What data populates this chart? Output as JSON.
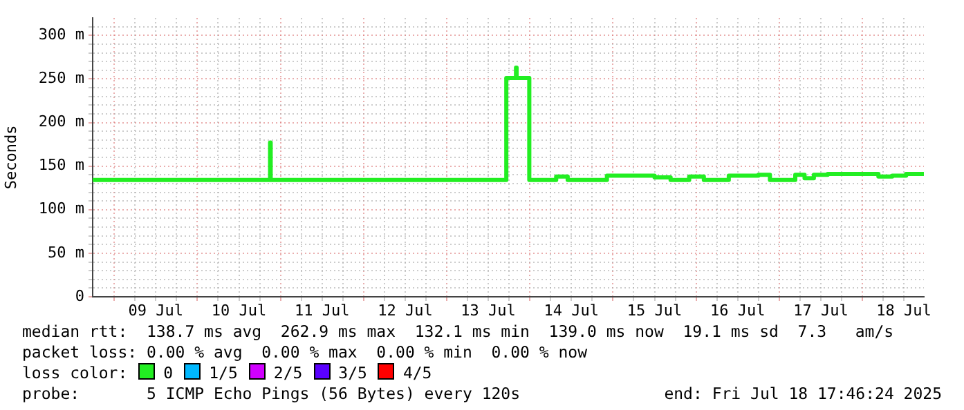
{
  "chart_data": {
    "type": "step",
    "ylabel": "Seconds",
    "x": [
      "2025-07-08T17:46",
      "2025-07-10T21:00",
      "2025-07-10T21:10",
      "2025-07-13T17:12",
      "2025-07-13T20:00",
      "2025-07-13T20:10",
      "2025-07-13T23:50",
      "2025-07-14T07:36",
      "2025-07-14T10:55",
      "2025-07-14T22:15",
      "2025-07-15T12:00",
      "2025-07-15T16:38",
      "2025-07-15T22:00",
      "2025-07-16T02:14",
      "2025-07-16T09:26",
      "2025-07-16T18:00",
      "2025-07-16T21:19",
      "2025-07-17T04:38",
      "2025-07-17T07:19",
      "2025-07-17T10:00",
      "2025-07-17T14:00",
      "2025-07-18T04:38",
      "2025-07-18T08:38",
      "2025-07-18T12:38",
      "2025-07-18T17:46"
    ],
    "series": [
      {
        "name": "0",
        "color": "#22ee22",
        "values": [
          134,
          177,
          134,
          251,
          263,
          251,
          134,
          138,
          134,
          139,
          137,
          134,
          138,
          134,
          139,
          140,
          134,
          140,
          136,
          140,
          141,
          138,
          139,
          141,
          140
        ]
      },
      {
        "name": "1/5",
        "color": "#00b8ff",
        "values": [
          null,
          null,
          null,
          null,
          null,
          null,
          null,
          null,
          null,
          null,
          null,
          null,
          null,
          null,
          null,
          null,
          null,
          null,
          null,
          null,
          null,
          null,
          null,
          null,
          null
        ]
      },
      {
        "name": "2/5",
        "color": "#d100ff",
        "values": [
          null,
          null,
          null,
          null,
          null,
          null,
          null,
          null,
          null,
          null,
          null,
          null,
          null,
          null,
          null,
          null,
          null,
          null,
          null,
          null,
          null,
          null,
          null,
          null,
          null
        ]
      },
      {
        "name": "3/5",
        "color": "#5a00ff",
        "values": [
          null,
          null,
          null,
          null,
          null,
          null,
          null,
          null,
          null,
          null,
          null,
          null,
          null,
          null,
          null,
          null,
          null,
          null,
          null,
          null,
          null,
          null,
          null,
          null,
          null
        ]
      },
      {
        "name": "4/5",
        "color": "#ff0000",
        "values": [
          null,
          null,
          null,
          null,
          null,
          null,
          null,
          null,
          null,
          null,
          null,
          null,
          null,
          null,
          null,
          null,
          null,
          null,
          null,
          null,
          null,
          null,
          null,
          null,
          null
        ]
      }
    ],
    "xlim": [
      "2025-07-08T17:46",
      "2025-07-18T17:46"
    ],
    "xticks": [
      {
        "value": "2025-07-09T00:00",
        "label": null
      },
      {
        "value": "2025-07-09T06:00",
        "label": null
      },
      {
        "value": "2025-07-09T12:00",
        "label": "09 Jul"
      },
      {
        "value": "2025-07-09T18:00",
        "label": null
      },
      {
        "value": "2025-07-10T00:00",
        "label": null
      },
      {
        "value": "2025-07-10T06:00",
        "label": null
      },
      {
        "value": "2025-07-10T12:00",
        "label": "10 Jul"
      },
      {
        "value": "2025-07-10T18:00",
        "label": null
      },
      {
        "value": "2025-07-11T00:00",
        "label": null
      },
      {
        "value": "2025-07-11T06:00",
        "label": null
      },
      {
        "value": "2025-07-11T12:00",
        "label": "11 Jul"
      },
      {
        "value": "2025-07-11T18:00",
        "label": null
      },
      {
        "value": "2025-07-12T00:00",
        "label": null
      },
      {
        "value": "2025-07-12T06:00",
        "label": null
      },
      {
        "value": "2025-07-12T12:00",
        "label": "12 Jul"
      },
      {
        "value": "2025-07-12T18:00",
        "label": null
      },
      {
        "value": "2025-07-13T00:00",
        "label": null
      },
      {
        "value": "2025-07-13T06:00",
        "label": null
      },
      {
        "value": "2025-07-13T12:00",
        "label": "13 Jul"
      },
      {
        "value": "2025-07-13T18:00",
        "label": null
      },
      {
        "value": "2025-07-14T00:00",
        "label": null
      },
      {
        "value": "2025-07-14T06:00",
        "label": null
      },
      {
        "value": "2025-07-14T12:00",
        "label": "14 Jul"
      },
      {
        "value": "2025-07-14T18:00",
        "label": null
      },
      {
        "value": "2025-07-15T00:00",
        "label": null
      },
      {
        "value": "2025-07-15T06:00",
        "label": null
      },
      {
        "value": "2025-07-15T12:00",
        "label": "15 Jul"
      },
      {
        "value": "2025-07-15T18:00",
        "label": null
      },
      {
        "value": "2025-07-16T00:00",
        "label": null
      },
      {
        "value": "2025-07-16T06:00",
        "label": null
      },
      {
        "value": "2025-07-16T12:00",
        "label": "16 Jul"
      },
      {
        "value": "2025-07-16T18:00",
        "label": null
      },
      {
        "value": "2025-07-17T00:00",
        "label": null
      },
      {
        "value": "2025-07-17T06:00",
        "label": null
      },
      {
        "value": "2025-07-17T12:00",
        "label": "17 Jul"
      },
      {
        "value": "2025-07-17T18:00",
        "label": null
      },
      {
        "value": "2025-07-18T00:00",
        "label": null
      },
      {
        "value": "2025-07-18T06:00",
        "label": null
      },
      {
        "value": "2025-07-18T12:00",
        "label": "18 Jul"
      }
    ],
    "ylim": [
      0,
      320
    ],
    "yticks": [
      {
        "value": 0,
        "label": "0"
      },
      {
        "value": 10,
        "label": null
      },
      {
        "value": 20,
        "label": null
      },
      {
        "value": 30,
        "label": null
      },
      {
        "value": 40,
        "label": null
      },
      {
        "value": 50,
        "label": "50 m"
      },
      {
        "value": 60,
        "label": null
      },
      {
        "value": 70,
        "label": null
      },
      {
        "value": 80,
        "label": null
      },
      {
        "value": 90,
        "label": null
      },
      {
        "value": 100,
        "label": "100 m"
      },
      {
        "value": 110,
        "label": null
      },
      {
        "value": 120,
        "label": null
      },
      {
        "value": 130,
        "label": null
      },
      {
        "value": 140,
        "label": null
      },
      {
        "value": 150,
        "label": "150 m"
      },
      {
        "value": 160,
        "label": null
      },
      {
        "value": 170,
        "label": null
      },
      {
        "value": 180,
        "label": null
      },
      {
        "value": 190,
        "label": null
      },
      {
        "value": 200,
        "label": "200 m"
      },
      {
        "value": 210,
        "label": null
      },
      {
        "value": 220,
        "label": null
      },
      {
        "value": 230,
        "label": null
      },
      {
        "value": 240,
        "label": null
      },
      {
        "value": 250,
        "label": "250 m"
      },
      {
        "value": 260,
        "label": null
      },
      {
        "value": 270,
        "label": null
      },
      {
        "value": 280,
        "label": null
      },
      {
        "value": 290,
        "label": null
      },
      {
        "value": 300,
        "label": "300 m"
      },
      {
        "value": 310,
        "label": null
      }
    ],
    "grid": true,
    "legend": "bottom",
    "annotations": [
      "median rtt:  138.7 ms avg  262.9 ms max  132.1 ms min  139.0 ms now  19.1 ms sd  7.3   am/s",
      "packet loss: 0.00 % avg  0.00 % max  0.00 % min  0.00 % now",
      "loss color:",
      "probe:       5 ICMP Echo Pings (56 Bytes) every 120s",
      "end: Fri Jul 18 17:46:24 2025"
    ]
  }
}
